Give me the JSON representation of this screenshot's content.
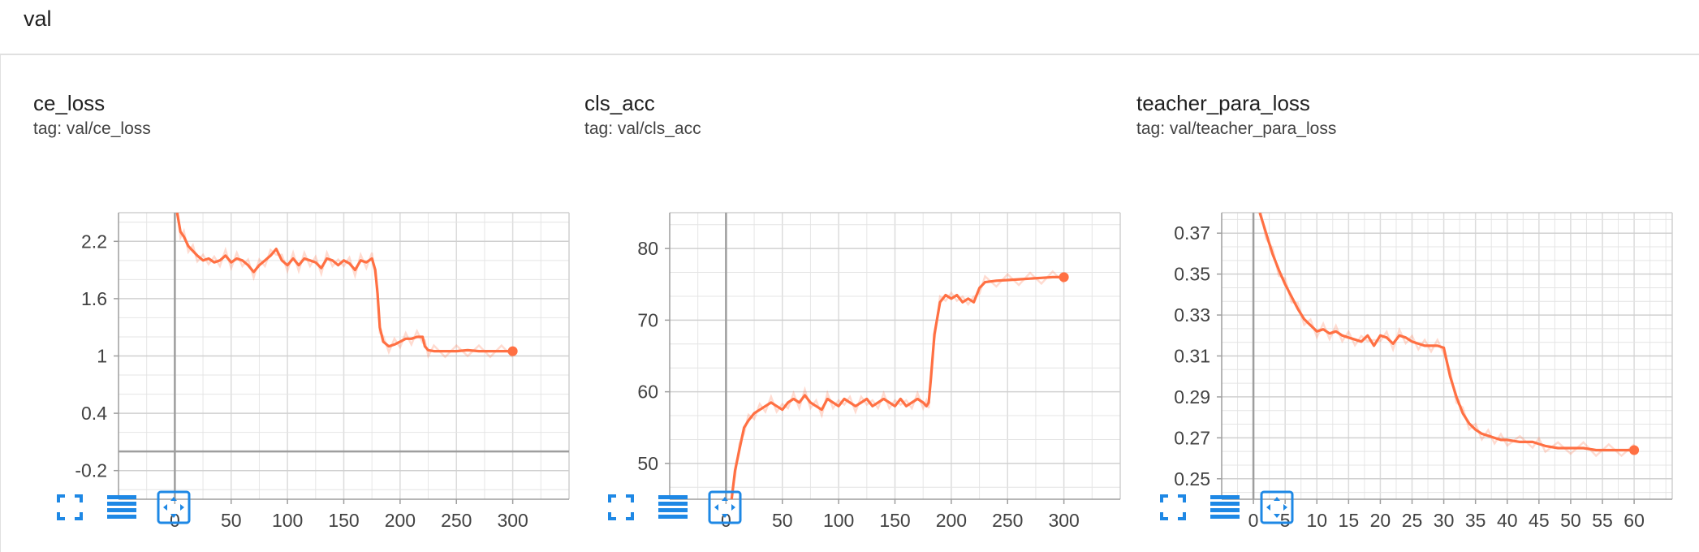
{
  "group": {
    "title": "val"
  },
  "accent_color": "#ff7043",
  "toolbar_icons": [
    "fullscreen-icon",
    "data-table-icon",
    "fit-domain-icon"
  ],
  "cards": [
    {
      "title": "ce_loss",
      "tag": "tag: val/ce_loss"
    },
    {
      "title": "cls_acc",
      "tag": "tag: val/cls_acc"
    },
    {
      "title": "teacher_para_loss",
      "tag": "tag: val/teacher_para_loss"
    }
  ],
  "chart_data": [
    {
      "type": "line",
      "title": "ce_loss",
      "xlim": [
        -50,
        350
      ],
      "ylim": [
        -0.5,
        2.5
      ],
      "xticks": [
        0,
        50,
        100,
        150,
        200,
        250,
        300
      ],
      "xtick_labels": [
        "0",
        "50",
        "100",
        "150",
        "200",
        "250",
        "300"
      ],
      "yticks": [
        -0.2,
        0.4,
        1,
        1.6,
        2.2
      ],
      "ytick_labels": [
        "-0.2",
        "0.4",
        "1",
        "1.6",
        "2.2"
      ],
      "grid": true,
      "zero_axes": true,
      "series": [
        {
          "x": [
            2,
            5,
            8,
            12,
            16,
            20,
            25,
            30,
            35,
            40,
            45,
            50,
            55,
            60,
            65,
            70,
            75,
            80,
            85,
            90,
            95,
            100,
            105,
            110,
            115,
            120,
            125,
            130,
            135,
            140,
            145,
            150,
            155,
            160,
            165,
            170,
            175,
            178,
            180,
            182,
            185,
            190,
            195,
            200,
            205,
            210,
            215,
            220,
            222,
            225,
            230,
            240,
            250,
            260,
            270,
            280,
            290,
            300
          ],
          "y": [
            2.5,
            2.3,
            2.25,
            2.15,
            2.1,
            2.05,
            2.0,
            2.02,
            1.98,
            2.0,
            2.05,
            1.98,
            2.02,
            2.0,
            1.95,
            1.88,
            1.95,
            2.0,
            2.05,
            2.12,
            2.0,
            1.95,
            2.02,
            1.95,
            2.02,
            2.0,
            1.98,
            1.92,
            2.02,
            2.0,
            1.95,
            2.0,
            1.97,
            1.9,
            2.0,
            1.98,
            2.02,
            1.9,
            1.65,
            1.3,
            1.15,
            1.1,
            1.12,
            1.15,
            1.18,
            1.18,
            1.2,
            1.2,
            1.1,
            1.06,
            1.05,
            1.05,
            1.05,
            1.06,
            1.05,
            1.05,
            1.05,
            1.05
          ]
        }
      ]
    },
    {
      "type": "line",
      "title": "cls_acc",
      "xlim": [
        -50,
        350
      ],
      "ylim": [
        45,
        85
      ],
      "xticks": [
        0,
        50,
        100,
        150,
        200,
        250,
        300
      ],
      "xtick_labels": [
        "0",
        "50",
        "100",
        "150",
        "200",
        "250",
        "300"
      ],
      "yticks": [
        50,
        60,
        70,
        80
      ],
      "ytick_labels": [
        "50",
        "60",
        "70",
        "80"
      ],
      "grid": true,
      "zero_axes": true,
      "series": [
        {
          "x": [
            5,
            8,
            12,
            16,
            20,
            25,
            30,
            35,
            40,
            45,
            50,
            55,
            60,
            65,
            70,
            75,
            80,
            85,
            90,
            95,
            100,
            105,
            110,
            115,
            120,
            125,
            130,
            135,
            140,
            145,
            150,
            155,
            160,
            165,
            170,
            175,
            178,
            180,
            182,
            185,
            190,
            195,
            200,
            205,
            210,
            215,
            220,
            225,
            230,
            240,
            250,
            260,
            270,
            280,
            290,
            300
          ],
          "y": [
            45,
            49,
            52,
            55,
            56,
            57,
            57.5,
            58,
            58.5,
            58,
            57.5,
            58.5,
            59,
            58.5,
            59.5,
            58.5,
            58,
            57.5,
            59,
            58.5,
            58,
            59,
            58.5,
            58,
            58.5,
            59,
            58,
            58.5,
            59,
            58.5,
            58,
            59,
            58,
            58.5,
            59,
            58.5,
            58,
            58.5,
            62,
            68,
            72.5,
            73.5,
            73,
            73.5,
            72.5,
            73,
            72.5,
            74.5,
            75.3,
            75.5,
            75.6,
            75.7,
            75.8,
            75.9,
            76,
            76
          ]
        }
      ]
    },
    {
      "type": "line",
      "title": "teacher_para_loss",
      "xlim": [
        -5,
        66
      ],
      "ylim": [
        0.24,
        0.38
      ],
      "xticks": [
        0,
        5,
        10,
        15,
        20,
        25,
        30,
        35,
        40,
        45,
        50,
        55,
        60
      ],
      "xtick_labels": [
        "0",
        "5",
        "10",
        "15",
        "20",
        "25",
        "30",
        "35",
        "40",
        "45",
        "50",
        "55",
        "60"
      ],
      "yticks": [
        0.25,
        0.27,
        0.29,
        0.31,
        0.33,
        0.35,
        0.37
      ],
      "ytick_labels": [
        "0.25",
        "0.27",
        "0.29",
        "0.31",
        "0.33",
        "0.35",
        "0.37"
      ],
      "grid": true,
      "zero_axes": true,
      "series": [
        {
          "x": [
            1,
            2,
            3,
            4,
            5,
            6,
            7,
            8,
            9,
            10,
            11,
            12,
            13,
            14,
            15,
            16,
            17,
            18,
            19,
            20,
            21,
            22,
            23,
            24,
            25,
            26,
            27,
            28,
            29,
            30,
            31,
            32,
            33,
            34,
            35,
            36,
            37,
            38,
            39,
            40,
            42,
            44,
            45,
            46,
            48,
            50,
            52,
            54,
            56,
            58,
            60
          ],
          "y": [
            0.38,
            0.37,
            0.36,
            0.352,
            0.345,
            0.339,
            0.333,
            0.328,
            0.325,
            0.322,
            0.323,
            0.321,
            0.322,
            0.32,
            0.319,
            0.318,
            0.317,
            0.32,
            0.315,
            0.32,
            0.319,
            0.316,
            0.32,
            0.319,
            0.317,
            0.316,
            0.315,
            0.315,
            0.315,
            0.314,
            0.3,
            0.29,
            0.282,
            0.277,
            0.274,
            0.272,
            0.271,
            0.27,
            0.269,
            0.269,
            0.268,
            0.268,
            0.267,
            0.266,
            0.265,
            0.265,
            0.265,
            0.264,
            0.264,
            0.264,
            0.264
          ]
        }
      ]
    }
  ]
}
